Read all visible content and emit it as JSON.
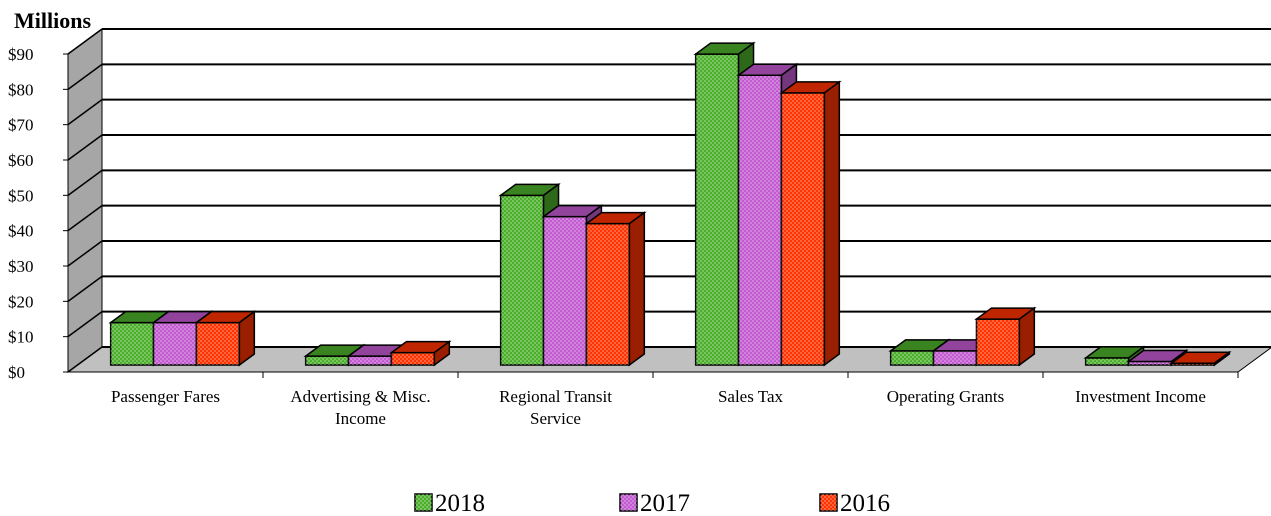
{
  "chart_data": {
    "type": "bar3d",
    "y_label": "Millions",
    "categories": [
      "Passenger Fares",
      "Advertising & Misc. Income",
      "Regional Transit Service",
      "Sales Tax",
      "Operating Grants",
      "Investment Income"
    ],
    "series": [
      {
        "name": "2018",
        "color": "#4caf2c",
        "values": [
          12,
          2.5,
          48,
          88,
          4,
          2
        ]
      },
      {
        "name": "2017",
        "color": "#c25ad0",
        "values": [
          12,
          2.5,
          42,
          82,
          4,
          1
        ]
      },
      {
        "name": "2016",
        "color": "#ff3300",
        "values": [
          12,
          3.5,
          40,
          77,
          13,
          0.5
        ]
      }
    ],
    "ylim": [
      0,
      90
    ],
    "yticks": [
      {
        "value": 0,
        "label": "$0"
      },
      {
        "value": 10,
        "label": "$10"
      },
      {
        "value": 20,
        "label": "$20"
      },
      {
        "value": 30,
        "label": "$30"
      },
      {
        "value": 40,
        "label": "$40"
      },
      {
        "value": 50,
        "label": "$50"
      },
      {
        "value": 60,
        "label": "$60"
      },
      {
        "value": 70,
        "label": "$70"
      },
      {
        "value": 80,
        "label": "$80"
      },
      {
        "value": 90,
        "label": "$90"
      }
    ],
    "grid": true,
    "legend": "bottom"
  }
}
